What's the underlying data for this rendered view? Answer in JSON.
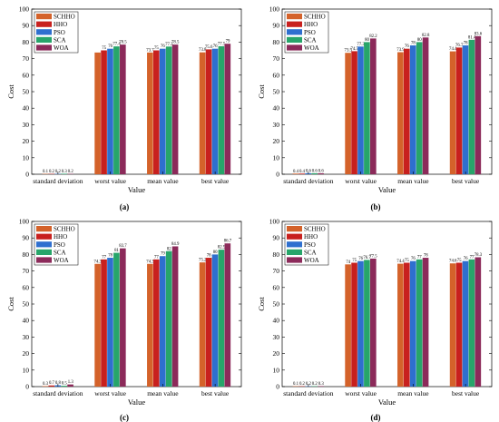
{
  "series_colors": [
    "#d4622a",
    "#c8201e",
    "#2e6fcf",
    "#27a56a",
    "#8c2a5a"
  ],
  "chart_data": [
    {
      "type": "bar",
      "panel_label": "(a)",
      "xlabel": "Value",
      "ylabel": "Cost",
      "ylim": [
        0,
        100
      ],
      "yticks": [
        0,
        10,
        20,
        30,
        40,
        50,
        60,
        70,
        80,
        90,
        100
      ],
      "categories": [
        "standard deviation",
        "worst value",
        "mean value",
        "best value"
      ],
      "legend_position": "top-left",
      "series": [
        {
          "name": "SCHHO",
          "values": [
            0.1,
            73.7,
            73.7,
            73.8
          ],
          "labels": [
            "0.1",
            "",
            "73.7",
            "73.8"
          ]
        },
        {
          "name": "HHO",
          "values": [
            0.2,
            75.0,
            75.0,
            75.6
          ],
          "labels": [
            "0.2",
            "75",
            "75",
            "75.6"
          ]
        },
        {
          "name": "PSO",
          "values": [
            0.2,
            76.0,
            76.0,
            76.0
          ],
          "labels": [
            "0.2",
            "76",
            "76",
            "76"
          ]
        },
        {
          "name": "SCA",
          "values": [
            0.3,
            77.4,
            77.3,
            77.5
          ],
          "labels": [
            "0.3",
            "77.4",
            "77.3",
            "77.5"
          ]
        },
        {
          "name": "WOA",
          "values": [
            0.2,
            78.5,
            78.5,
            79.0
          ],
          "labels": [
            "0.2",
            "78.5",
            "78.5",
            "79"
          ]
        }
      ]
    },
    {
      "type": "bar",
      "panel_label": "(b)",
      "xlabel": "Value",
      "ylabel": "Cost",
      "ylim": [
        0,
        100
      ],
      "yticks": [
        0,
        10,
        20,
        30,
        40,
        50,
        60,
        70,
        80,
        90,
        100
      ],
      "categories": [
        "standard deviation",
        "worst value",
        "mean value",
        "best value"
      ],
      "legend_position": "top-left",
      "series": [
        {
          "name": "SCHHO",
          "values": [
            0.4,
            73.5,
            73.9,
            74.4
          ],
          "labels": [
            "0.4",
            "73.5",
            "73.9",
            "74.4"
          ]
        },
        {
          "name": "HHO",
          "values": [
            0.4,
            74.5,
            76.0,
            76.7
          ],
          "labels": [
            "0.4",
            "74.5",
            "76",
            "76.7"
          ]
        },
        {
          "name": "PSO",
          "values": [
            0.6,
            77.3,
            78.0,
            78.0
          ],
          "labels": [
            "0.6",
            "77.3",
            "78",
            "78"
          ]
        },
        {
          "name": "SCA",
          "values": [
            0.6,
            80.0,
            80.0,
            81.4
          ],
          "labels": [
            "0.6",
            "80",
            "80",
            "81.4"
          ]
        },
        {
          "name": "WOA",
          "values": [
            0.6,
            82.2,
            82.8,
            83.6
          ],
          "labels": [
            "0.6",
            "82.2",
            "82.8",
            "83.6"
          ]
        }
      ]
    },
    {
      "type": "bar",
      "panel_label": "(c)",
      "xlabel": "Value",
      "ylabel": "Cost",
      "ylim": [
        0,
        100
      ],
      "yticks": [
        0,
        10,
        20,
        30,
        40,
        50,
        60,
        70,
        80,
        90,
        100
      ],
      "categories": [
        "standard deviation",
        "worst value",
        "mean value",
        "best value"
      ],
      "legend_position": "top-left",
      "series": [
        {
          "name": "SCHHO",
          "values": [
            0.3,
            74.3,
            74.3,
            75.2
          ],
          "labels": [
            "0.3",
            "74.3",
            "74.3",
            "75.2"
          ]
        },
        {
          "name": "HHO",
          "values": [
            0.7,
            77.0,
            77.0,
            78.0
          ],
          "labels": [
            "0.7",
            "77",
            "77",
            "78"
          ]
        },
        {
          "name": "PSO",
          "values": [
            0.8,
            78.0,
            79.0,
            80.0
          ],
          "labels": [
            "0.8",
            "78",
            "79",
            "80"
          ]
        },
        {
          "name": "SCA",
          "values": [
            0.5,
            81.0,
            82.0,
            82.9
          ],
          "labels": [
            "0.5",
            "81",
            "82",
            "82.9"
          ]
        },
        {
          "name": "WOA",
          "values": [
            1.3,
            83.7,
            84.9,
            86.7
          ],
          "labels": [
            "1.3",
            "83.7",
            "84.9",
            "86.7"
          ]
        }
      ]
    },
    {
      "type": "bar",
      "panel_label": "(d)",
      "xlabel": "Value",
      "ylabel": "Cost",
      "ylim": [
        0,
        100
      ],
      "yticks": [
        0,
        10,
        20,
        30,
        40,
        50,
        60,
        70,
        80,
        90,
        100
      ],
      "categories": [
        "standard deviation",
        "worst value",
        "mean value",
        "best value"
      ],
      "legend_position": "top-left",
      "series": [
        {
          "name": "SCHHO",
          "values": [
            0.1,
            74.0,
            74.4,
            74.6
          ],
          "labels": [
            "0.1",
            "74",
            "74.4",
            "74.6"
          ]
        },
        {
          "name": "HHO",
          "values": [
            0.2,
            75.0,
            75.0,
            75.0
          ],
          "labels": [
            "0.2",
            "75",
            "75",
            "75"
          ]
        },
        {
          "name": "PSO",
          "values": [
            0.2,
            76.0,
            76.0,
            76.0
          ],
          "labels": [
            "0.2",
            "76",
            "76",
            "76"
          ]
        },
        {
          "name": "SCA",
          "values": [
            0.2,
            76.7,
            77.0,
            77.0
          ],
          "labels": [
            "0.2",
            "76.7",
            "77",
            "77"
          ]
        },
        {
          "name": "WOA",
          "values": [
            0.3,
            77.5,
            78.0,
            78.3
          ],
          "labels": [
            "0.3",
            "77.5",
            "78",
            "78.3"
          ]
        }
      ]
    }
  ]
}
